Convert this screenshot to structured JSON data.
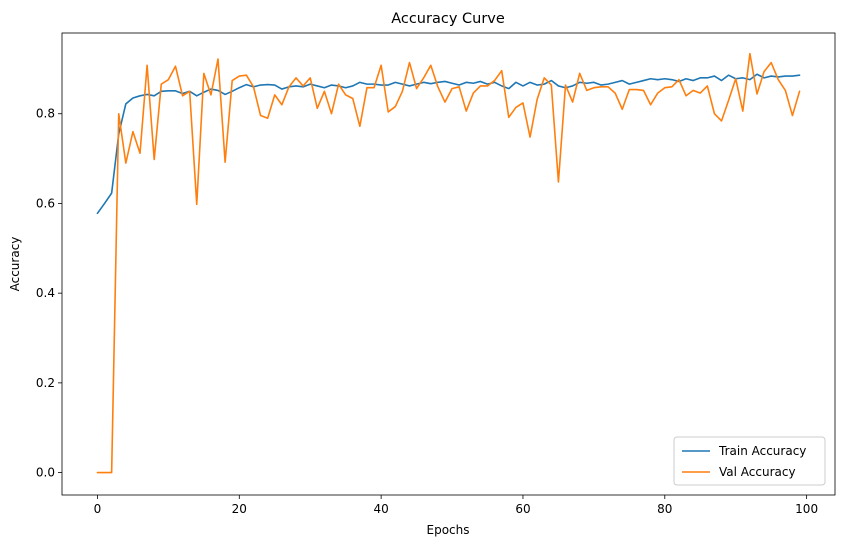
{
  "chart_data": {
    "type": "line",
    "title": "Accuracy Curve",
    "xlabel": "Epochs",
    "ylabel": "Accuracy",
    "xlim": [
      -5,
      104
    ],
    "ylim": [
      -0.05,
      0.98
    ],
    "xticks": [
      0,
      20,
      40,
      60,
      80,
      100
    ],
    "yticks": [
      0.0,
      0.2,
      0.4,
      0.6,
      0.8
    ],
    "xtick_labels": [
      "0",
      "20",
      "40",
      "60",
      "80",
      "100"
    ],
    "ytick_labels": [
      "0.0",
      "0.2",
      "0.4",
      "0.6",
      "0.8"
    ],
    "grid": false,
    "legend_position": "lower-right",
    "series": [
      {
        "name": "Train Accuracy",
        "color": "#1f77b4",
        "values": [
          0.578,
          0.6,
          0.623,
          0.755,
          0.822,
          0.835,
          0.84,
          0.843,
          0.84,
          0.85,
          0.851,
          0.851,
          0.845,
          0.85,
          0.84,
          0.848,
          0.855,
          0.852,
          0.843,
          0.85,
          0.858,
          0.865,
          0.86,
          0.864,
          0.865,
          0.864,
          0.855,
          0.86,
          0.862,
          0.86,
          0.866,
          0.862,
          0.858,
          0.864,
          0.862,
          0.858,
          0.862,
          0.87,
          0.866,
          0.866,
          0.864,
          0.864,
          0.87,
          0.866,
          0.862,
          0.866,
          0.87,
          0.867,
          0.87,
          0.872,
          0.868,
          0.864,
          0.87,
          0.868,
          0.872,
          0.866,
          0.87,
          0.862,
          0.856,
          0.87,
          0.862,
          0.87,
          0.864,
          0.866,
          0.874,
          0.862,
          0.858,
          0.862,
          0.87,
          0.868,
          0.87,
          0.864,
          0.866,
          0.87,
          0.874,
          0.866,
          0.87,
          0.874,
          0.878,
          0.876,
          0.878,
          0.876,
          0.872,
          0.878,
          0.874,
          0.88,
          0.88,
          0.884,
          0.874,
          0.886,
          0.878,
          0.88,
          0.876,
          0.888,
          0.88,
          0.884,
          0.882,
          0.884,
          0.884,
          0.886
        ]
      },
      {
        "name": "Val Accuracy",
        "color": "#ff7f0e",
        "values": [
          0.0,
          0.0,
          0.0,
          0.8,
          0.69,
          0.76,
          0.712,
          0.908,
          0.698,
          0.866,
          0.876,
          0.906,
          0.84,
          0.85,
          0.598,
          0.89,
          0.842,
          0.922,
          0.692,
          0.874,
          0.884,
          0.886,
          0.86,
          0.796,
          0.79,
          0.842,
          0.82,
          0.86,
          0.88,
          0.862,
          0.88,
          0.812,
          0.85,
          0.8,
          0.866,
          0.842,
          0.834,
          0.772,
          0.858,
          0.858,
          0.908,
          0.804,
          0.816,
          0.85,
          0.914,
          0.856,
          0.88,
          0.908,
          0.86,
          0.826,
          0.856,
          0.86,
          0.806,
          0.846,
          0.862,
          0.862,
          0.874,
          0.896,
          0.792,
          0.814,
          0.824,
          0.748,
          0.832,
          0.88,
          0.864,
          0.648,
          0.864,
          0.826,
          0.89,
          0.852,
          0.858,
          0.86,
          0.86,
          0.846,
          0.81,
          0.854,
          0.854,
          0.852,
          0.82,
          0.846,
          0.858,
          0.86,
          0.876,
          0.84,
          0.852,
          0.846,
          0.862,
          0.8,
          0.784,
          0.83,
          0.878,
          0.806,
          0.934,
          0.844,
          0.894,
          0.914,
          0.876,
          0.852,
          0.796,
          0.85
        ]
      }
    ]
  }
}
